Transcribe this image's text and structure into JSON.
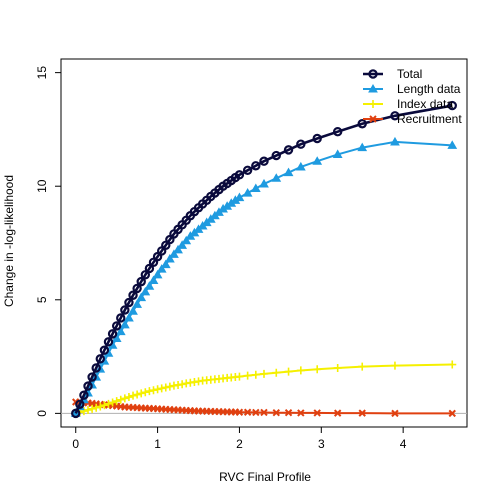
{
  "chart_data": {
    "type": "line",
    "title": "",
    "xlabel": "RVC Final Profile",
    "ylabel": "Change in -log-likelihood",
    "xlim": [
      -0.18,
      4.78
    ],
    "ylim": [
      -0.6,
      15.6
    ],
    "x_ticks": [
      0,
      1,
      2,
      3,
      4
    ],
    "y_ticks": [
      0,
      5,
      10,
      15
    ],
    "reference_line_y": 0,
    "grid": false,
    "legend_position": "top-right",
    "series": [
      {
        "name": "Total",
        "color": "#0a0a3c",
        "marker": "circle",
        "x": [
          0.0,
          0.05,
          0.1,
          0.15,
          0.2,
          0.25,
          0.3,
          0.35,
          0.4,
          0.45,
          0.5,
          0.55,
          0.6,
          0.65,
          0.7,
          0.75,
          0.8,
          0.85,
          0.9,
          0.95,
          1.0,
          1.05,
          1.1,
          1.15,
          1.2,
          1.25,
          1.3,
          1.35,
          1.4,
          1.45,
          1.5,
          1.55,
          1.6,
          1.65,
          1.7,
          1.75,
          1.8,
          1.85,
          1.9,
          1.95,
          2.0,
          2.1,
          2.2,
          2.3,
          2.45,
          2.6,
          2.75,
          2.95,
          3.2,
          3.5,
          3.9,
          4.6
        ],
        "y": [
          0.0,
          0.4,
          0.8,
          1.2,
          1.6,
          2.0,
          2.4,
          2.78,
          3.15,
          3.5,
          3.85,
          4.2,
          4.55,
          4.88,
          5.2,
          5.5,
          5.8,
          6.1,
          6.38,
          6.65,
          6.9,
          7.15,
          7.4,
          7.65,
          7.9,
          8.1,
          8.3,
          8.5,
          8.7,
          8.88,
          9.05,
          9.22,
          9.38,
          9.55,
          9.7,
          9.85,
          10.0,
          10.12,
          10.25,
          10.38,
          10.5,
          10.7,
          10.9,
          11.1,
          11.35,
          11.6,
          11.85,
          12.1,
          12.4,
          12.75,
          13.1,
          13.55
        ]
      },
      {
        "name": "Length data",
        "color": "#1f9be0",
        "marker": "triangle",
        "x": [
          0.0,
          0.05,
          0.1,
          0.15,
          0.2,
          0.25,
          0.3,
          0.35,
          0.4,
          0.45,
          0.5,
          0.55,
          0.6,
          0.65,
          0.7,
          0.75,
          0.8,
          0.85,
          0.9,
          0.95,
          1.0,
          1.05,
          1.1,
          1.15,
          1.2,
          1.25,
          1.3,
          1.35,
          1.4,
          1.45,
          1.5,
          1.55,
          1.6,
          1.65,
          1.7,
          1.75,
          1.8,
          1.85,
          1.9,
          1.95,
          2.0,
          2.1,
          2.2,
          2.3,
          2.45,
          2.6,
          2.75,
          2.95,
          3.2,
          3.5,
          3.9,
          4.6
        ],
        "y": [
          0.0,
          0.3,
          0.6,
          0.9,
          1.25,
          1.6,
          1.95,
          2.3,
          2.65,
          3.0,
          3.3,
          3.6,
          3.9,
          4.2,
          4.5,
          4.8,
          5.1,
          5.35,
          5.6,
          5.85,
          6.1,
          6.35,
          6.55,
          6.8,
          7.0,
          7.2,
          7.4,
          7.6,
          7.8,
          7.95,
          8.1,
          8.25,
          8.4,
          8.55,
          8.7,
          8.85,
          9.0,
          9.12,
          9.25,
          9.38,
          9.5,
          9.7,
          9.9,
          10.1,
          10.35,
          10.6,
          10.85,
          11.1,
          11.4,
          11.7,
          11.95,
          11.8
        ]
      },
      {
        "name": "Index data",
        "color": "#f5f000",
        "marker": "plus",
        "x": [
          0.0,
          0.05,
          0.1,
          0.15,
          0.2,
          0.25,
          0.3,
          0.35,
          0.4,
          0.45,
          0.5,
          0.55,
          0.6,
          0.65,
          0.7,
          0.75,
          0.8,
          0.85,
          0.9,
          0.95,
          1.0,
          1.05,
          1.1,
          1.15,
          1.2,
          1.25,
          1.3,
          1.35,
          1.4,
          1.45,
          1.5,
          1.55,
          1.6,
          1.65,
          1.7,
          1.75,
          1.8,
          1.85,
          1.9,
          1.95,
          2.0,
          2.1,
          2.2,
          2.3,
          2.45,
          2.6,
          2.75,
          2.95,
          3.2,
          3.5,
          3.9,
          4.6
        ],
        "y": [
          0.0,
          0.05,
          0.1,
          0.15,
          0.2,
          0.25,
          0.3,
          0.36,
          0.42,
          0.48,
          0.54,
          0.6,
          0.66,
          0.72,
          0.78,
          0.83,
          0.88,
          0.93,
          0.98,
          1.02,
          1.06,
          1.1,
          1.14,
          1.18,
          1.22,
          1.25,
          1.28,
          1.32,
          1.35,
          1.38,
          1.41,
          1.44,
          1.46,
          1.48,
          1.5,
          1.52,
          1.54,
          1.56,
          1.58,
          1.6,
          1.62,
          1.66,
          1.7,
          1.74,
          1.79,
          1.84,
          1.89,
          1.94,
          2.0,
          2.06,
          2.1,
          2.15
        ]
      },
      {
        "name": "Recruitment",
        "color": "#e04010",
        "marker": "x",
        "x": [
          0.0,
          0.05,
          0.1,
          0.15,
          0.2,
          0.25,
          0.3,
          0.35,
          0.4,
          0.45,
          0.5,
          0.55,
          0.6,
          0.65,
          0.7,
          0.75,
          0.8,
          0.85,
          0.9,
          0.95,
          1.0,
          1.05,
          1.1,
          1.15,
          1.2,
          1.25,
          1.3,
          1.35,
          1.4,
          1.45,
          1.5,
          1.55,
          1.6,
          1.65,
          1.7,
          1.75,
          1.8,
          1.85,
          1.9,
          1.95,
          2.0,
          2.1,
          2.2,
          2.3,
          2.45,
          2.6,
          2.75,
          2.95,
          3.2,
          3.5,
          3.9,
          4.6
        ],
        "y": [
          0.5,
          0.5,
          0.48,
          0.46,
          0.44,
          0.42,
          0.4,
          0.38,
          0.36,
          0.34,
          0.32,
          0.3,
          0.28,
          0.27,
          0.26,
          0.25,
          0.24,
          0.23,
          0.22,
          0.21,
          0.2,
          0.19,
          0.18,
          0.17,
          0.16,
          0.15,
          0.14,
          0.13,
          0.12,
          0.11,
          0.1,
          0.1,
          0.09,
          0.09,
          0.08,
          0.08,
          0.07,
          0.07,
          0.06,
          0.06,
          0.05,
          0.05,
          0.04,
          0.04,
          0.03,
          0.03,
          0.02,
          0.02,
          0.01,
          0.01,
          0.0,
          0.0
        ]
      }
    ]
  }
}
